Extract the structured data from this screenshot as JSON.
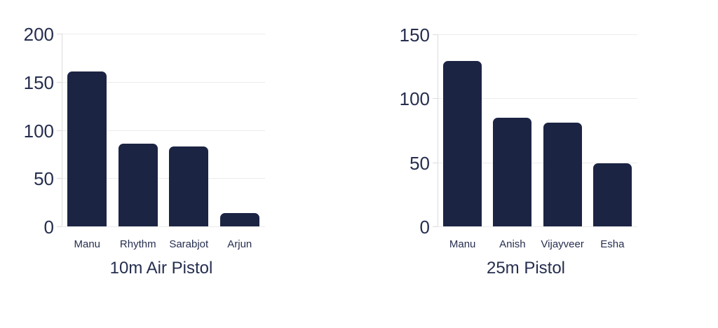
{
  "page": {
    "background": "#ffffff"
  },
  "style": {
    "bar_color": "#1c2444",
    "text_color": "#262e4f",
    "grid_color": "#ececec",
    "axis_color": "#dcdcdc"
  },
  "chart_data": [
    {
      "type": "bar",
      "title": "10m Air Pistol",
      "categories": [
        "Manu",
        "Rhythm",
        "Sarabjot",
        "Arjun"
      ],
      "values": [
        161,
        86,
        83,
        14
      ],
      "xlabel": "",
      "ylabel": "",
      "ylim": [
        0,
        200
      ],
      "yticks": [
        0,
        50,
        100,
        150,
        200
      ],
      "grid": true,
      "legend": "none",
      "bar_color": "#1c2444"
    },
    {
      "type": "bar",
      "title": "25m Pistol",
      "categories": [
        "Manu",
        "Anish",
        "Vijayveer",
        "Esha"
      ],
      "values": [
        129,
        85,
        81,
        49
      ],
      "xlabel": "",
      "ylabel": "",
      "ylim": [
        0,
        150
      ],
      "yticks": [
        0,
        50,
        100,
        150
      ],
      "grid": true,
      "legend": "none",
      "bar_color": "#1c2444"
    }
  ]
}
